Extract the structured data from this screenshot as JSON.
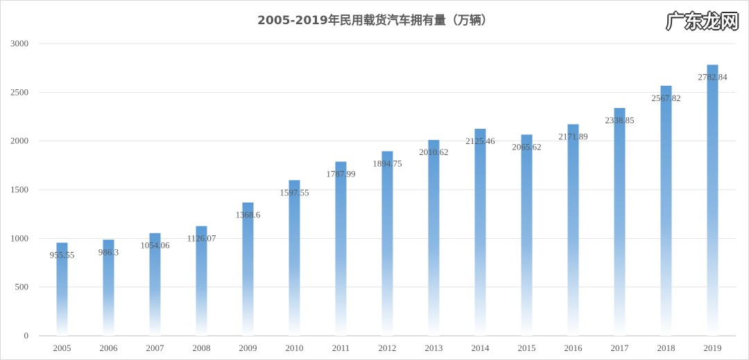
{
  "chart_data": {
    "type": "bar",
    "title": "2005-2019年民用载货汽车拥有量（万辆）",
    "xlabel": "",
    "ylabel": "",
    "categories": [
      "2005",
      "2006",
      "2007",
      "2008",
      "2009",
      "2010",
      "2011",
      "2012",
      "2013",
      "2014",
      "2015",
      "2016",
      "2017",
      "2018",
      "2019"
    ],
    "values": [
      955.55,
      986.3,
      1054.06,
      1126.07,
      1368.6,
      1597.55,
      1787.99,
      1894.75,
      2010.62,
      2125.46,
      2065.62,
      2171.89,
      2338.85,
      2567.82,
      2782.84
    ],
    "data_labels": [
      "955.55",
      "986.3",
      "1054.06",
      "1126.07",
      "1368.6",
      "1597.55",
      "1787.99",
      "1894.75",
      "2010.62",
      "2125.46",
      "2065.62",
      "2171.89",
      "2338.85",
      "2567.82",
      "2782.84"
    ],
    "ylim": [
      0,
      3000
    ],
    "yticks": [
      "0",
      "500",
      "1000",
      "1500",
      "2000",
      "2500",
      "3000"
    ],
    "grid": true,
    "legend": "none",
    "bar_color": "#5b9bd5",
    "bar_fill": "vertical gradient fading to white at bottom"
  },
  "watermark": "广东龙网"
}
